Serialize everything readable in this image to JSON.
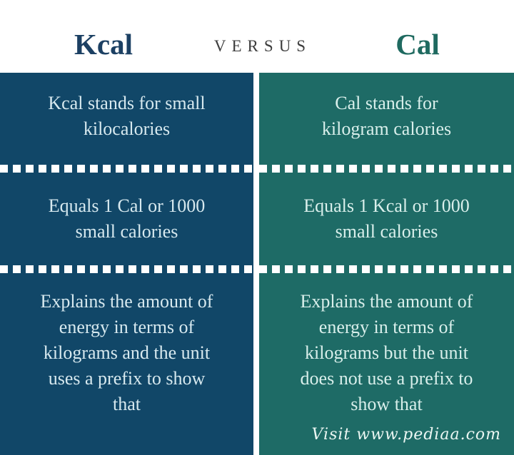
{
  "header": {
    "left_title": "Kcal",
    "versus": "VERSUS",
    "right_title": "Cal"
  },
  "colors": {
    "left_column_bg": "#114768",
    "right_column_bg": "#1e6b66",
    "left_title_color": "#1c4063",
    "right_title_color": "#1f6a60",
    "versus_color": "#3d3d3d",
    "left_text_color": "#d7e9ef",
    "right_text_color": "#d9efeb",
    "divider_color": "#ffffff",
    "background": "#ffffff"
  },
  "columns": {
    "left": {
      "rows": [
        {
          "lines": [
            "Kcal stands for small",
            "kilocalories"
          ]
        },
        {
          "lines": [
            "Equals 1 Cal or 1000",
            "small calories"
          ]
        },
        {
          "lines": [
            "Explains the amount of",
            "energy in terms of",
            "kilograms and the unit",
            "uses a prefix to show",
            "that"
          ]
        }
      ]
    },
    "right": {
      "rows": [
        {
          "lines": [
            "Cal stands for",
            "kilogram calories"
          ]
        },
        {
          "lines": [
            "Equals 1 Kcal or 1000",
            "small calories"
          ]
        },
        {
          "lines": [
            "Explains the amount of",
            "energy in terms of",
            "kilograms but the unit",
            "does not use a prefix to",
            "show that"
          ]
        }
      ]
    }
  },
  "footer": {
    "watermark": "Visit www.pediaa.com"
  }
}
